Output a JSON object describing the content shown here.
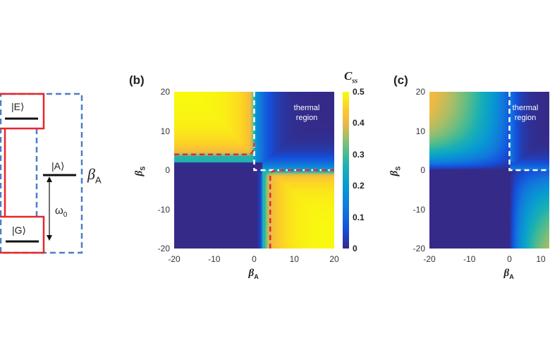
{
  "panel_a": {
    "states": {
      "excited": "|E⟩",
      "ground": "|G⟩",
      "ancilla": "|A⟩"
    },
    "frequency_label": "ω",
    "frequency_sub": "0",
    "bath_label": "β",
    "bath_sub": "A",
    "colors": {
      "red_box": "#e8262a",
      "blue_dashed": "#4a7fc8",
      "level": "#111111"
    }
  },
  "chart_data": [
    {
      "panel": "(b)",
      "type": "heatmap",
      "xlabel": "β",
      "xlabel_sub": "A",
      "ylabel": "β",
      "ylabel_sub": "S",
      "xlim": [
        -20,
        20
      ],
      "ylim": [
        -20,
        20
      ],
      "xticks": [
        "-20",
        "-10",
        "0",
        "10",
        "20"
      ],
      "yticks": [
        "20",
        "10",
        "0",
        "-10",
        "-20"
      ],
      "colorbar": {
        "label": "C",
        "label_sub": "ss",
        "range": [
          0,
          0.5
        ],
        "ticks": [
          "0.5",
          "0.4",
          "0.3",
          "0.2",
          "0.1",
          "0"
        ]
      },
      "annotation": [
        "thermal",
        "region"
      ],
      "description_regions": {
        "top_left_max": 0.5,
        "bottom_right_max": 0.5,
        "thermal_region_value": 0
      }
    },
    {
      "panel": "(c)",
      "type": "heatmap",
      "xlabel": "β",
      "xlabel_sub": "A",
      "ylabel": "β",
      "ylabel_sub": "S",
      "xlim": [
        -20,
        20
      ],
      "ylim": [
        -20,
        20
      ],
      "xticks": [
        "-20",
        "-10",
        "0",
        "10"
      ],
      "yticks": [
        "20",
        "10",
        "0",
        "-10",
        "-20"
      ],
      "annotation": [
        "thermal",
        "region"
      ]
    }
  ]
}
